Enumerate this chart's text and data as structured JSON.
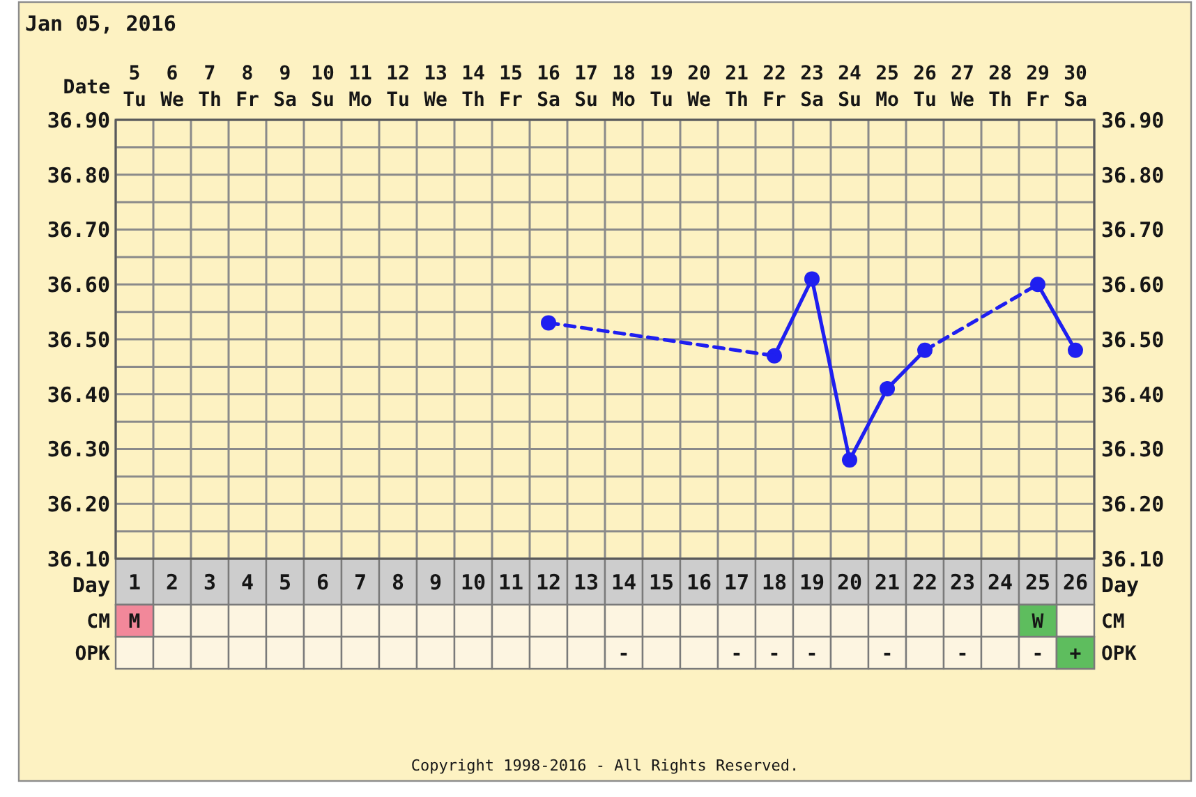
{
  "chart_data": [
    {
      "type": "line",
      "title": "Jan 05, 2016",
      "xlabel": "Date",
      "x2label": "Day",
      "categories": [
        "5 Tu",
        "6 We",
        "7 Th",
        "8 Fr",
        "9 Sa",
        "10 Su",
        "11 Mo",
        "12 Tu",
        "13 We",
        "14 Th",
        "15 Fr",
        "16 Sa",
        "17 Su",
        "18 Mo",
        "19 Tu",
        "20 We",
        "21 Th",
        "22 Fr",
        "23 Sa",
        "24 Su",
        "25 Mo",
        "26 Tu",
        "27 We",
        "28 Th",
        "29 Fr",
        "30 Sa"
      ],
      "x2lim": [
        0.5,
        26.5
      ],
      "x2ticks": [
        1,
        2,
        3,
        4,
        5,
        6,
        7,
        8,
        9,
        10,
        11,
        12,
        13,
        14,
        15,
        16,
        17,
        18,
        19,
        20,
        21,
        22,
        23,
        24,
        25,
        26
      ],
      "series": [
        {
          "color": "#1f1ff0",
          "values": [
            null,
            null,
            null,
            null,
            null,
            null,
            null,
            null,
            null,
            null,
            null,
            null,
            null,
            null,
            null,
            null,
            null,
            36.47,
            36.61,
            36.28,
            36.41,
            36.48,
            null,
            null,
            null,
            null
          ]
        },
        {
          "color": "#1f1ff0",
          "values": [
            null,
            null,
            null,
            null,
            null,
            null,
            null,
            null,
            null,
            null,
            null,
            null,
            null,
            null,
            null,
            null,
            null,
            null,
            null,
            null,
            null,
            null,
            null,
            null,
            36.6,
            36.48
          ]
        },
        {
          "color": "#1f1ff0",
          "line_style": "dashed",
          "marker": "none",
          "values": [
            null,
            null,
            null,
            null,
            null,
            null,
            null,
            null,
            null,
            null,
            null,
            36.53,
            null,
            null,
            null,
            null,
            null,
            36.47,
            null,
            null,
            null,
            null,
            null,
            null,
            null,
            null
          ]
        },
        {
          "color": "#1f1ff0",
          "line_style": "dashed",
          "marker": "none",
          "values": [
            null,
            null,
            null,
            null,
            null,
            null,
            null,
            null,
            null,
            null,
            null,
            null,
            null,
            null,
            null,
            null,
            null,
            null,
            null,
            null,
            null,
            36.48,
            null,
            null,
            36.6,
            null
          ]
        },
        {
          "type": "scatter",
          "color": "#1f1ff0",
          "values": [
            null,
            null,
            null,
            null,
            null,
            null,
            null,
            null,
            null,
            null,
            null,
            36.53,
            null,
            null,
            null,
            null,
            null,
            null,
            null,
            null,
            null,
            null,
            null,
            null,
            null,
            null
          ]
        }
      ],
      "ylim": [
        36.1,
        36.9
      ],
      "yticks": [
        {
          "value": 36.1,
          "label": "36.10"
        },
        {
          "value": 36.15,
          "label": null
        },
        {
          "value": 36.2,
          "label": "36.20"
        },
        {
          "value": 36.25,
          "label": null
        },
        {
          "value": 36.3,
          "label": "36.30"
        },
        {
          "value": 36.35,
          "label": null
        },
        {
          "value": 36.4,
          "label": "36.40"
        },
        {
          "value": 36.45,
          "label": null
        },
        {
          "value": 36.5,
          "label": "36.50"
        },
        {
          "value": 36.55,
          "label": null
        },
        {
          "value": 36.6,
          "label": "36.60"
        },
        {
          "value": 36.65,
          "label": null
        },
        {
          "value": 36.7,
          "label": "36.70"
        },
        {
          "value": 36.75,
          "label": null
        },
        {
          "value": 36.8,
          "label": "36.80"
        },
        {
          "value": 36.85,
          "label": null
        },
        {
          "value": 36.9,
          "label": "36.90"
        }
      ],
      "y2lim": [
        36.1,
        36.9
      ],
      "y2ticks": [
        {
          "value": 36.1,
          "label": "36.10"
        },
        {
          "value": 36.2,
          "label": "36.20"
        },
        {
          "value": 36.3,
          "label": "36.30"
        },
        {
          "value": 36.4,
          "label": "36.40"
        },
        {
          "value": 36.5,
          "label": "36.50"
        },
        {
          "value": 36.6,
          "label": "36.60"
        },
        {
          "value": 36.7,
          "label": "36.70"
        },
        {
          "value": 36.8,
          "label": "36.80"
        },
        {
          "value": 36.9,
          "label": "36.90"
        }
      ],
      "grid": true,
      "marker": "circle",
      "line_style": "solid",
      "annotations": [
        "Copyright 1998-2016 - All Rights Reserved."
      ]
    },
    {
      "type": "other",
      "y_categories": [
        "CM",
        "OPK"
      ],
      "y2_categories": [
        "CM",
        "OPK"
      ],
      "annotations": [
        {
          "text": "M",
          "x": "1",
          "y": "CM"
        },
        {
          "text": "W",
          "x": "25",
          "y": "CM"
        },
        {
          "text": "-",
          "x": "14",
          "y": "OPK"
        },
        {
          "text": "-",
          "x": "17",
          "y": "OPK"
        },
        {
          "text": "-",
          "x": "18",
          "y": "OPK"
        },
        {
          "text": "-",
          "x": "19",
          "y": "OPK"
        },
        {
          "text": "-",
          "x": "21",
          "y": "OPK"
        },
        {
          "text": "-",
          "x": "23",
          "y": "OPK"
        },
        {
          "text": "-",
          "x": "25",
          "y": "OPK"
        },
        {
          "text": "+",
          "x": "26",
          "y": "OPK"
        }
      ],
      "colors": [
        "#f2889a",
        "#5ebd5e",
        null,
        null,
        null,
        null,
        null,
        null,
        null,
        "#5ebd5e"
      ]
    }
  ]
}
